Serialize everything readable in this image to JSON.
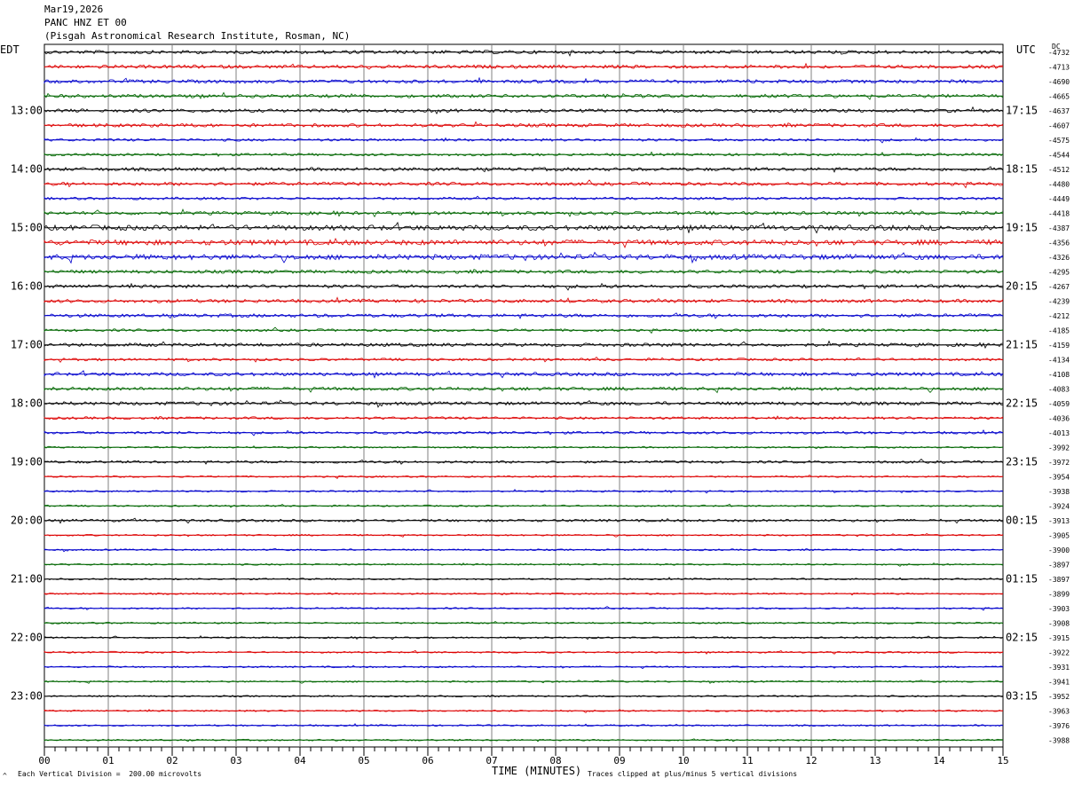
{
  "header": {
    "date": "Mar19,2026",
    "station": "PANC HNZ ET 00",
    "location": "(Pisgah Astronomical Research Institute, Rosman, NC)"
  },
  "labels": {
    "left_zone": "EDT",
    "right_zone": "UTC",
    "dc": "DC"
  },
  "footer": {
    "xlabel": "TIME (MINUTES)",
    "division_note": "Each Vertical Division =  200.00 microvolts",
    "clip_note": "Traces clipped at plus/minus 5 vertical divisions",
    "corner_mark": "^"
  },
  "colors": {
    "cycle": [
      "#000000",
      "#dd0000",
      "#0000cc",
      "#006600"
    ],
    "grid": "#808080"
  },
  "chart_data": {
    "type": "line",
    "title": "PANC HNZ ET 00",
    "xlabel": "TIME (MINUTES)",
    "xlim": [
      0,
      15
    ],
    "x_ticks": [
      "00",
      "01",
      "02",
      "03",
      "04",
      "05",
      "06",
      "07",
      "08",
      "09",
      "10",
      "11",
      "12",
      "13",
      "14",
      "15"
    ],
    "trace_count": 48,
    "trace_minutes": 15,
    "left_time_labels": [
      "13:00",
      "14:00",
      "15:00",
      "16:00",
      "17:00",
      "18:00",
      "19:00",
      "20:00",
      "21:00",
      "22:00",
      "23:00"
    ],
    "right_time_labels": [
      "17:15",
      "18:15",
      "19:15",
      "20:15",
      "21:15",
      "22:15",
      "23:15",
      "00:15",
      "01:15",
      "02:15",
      "03:15"
    ],
    "hour_label_first_trace": 4,
    "hour_label_every": 4,
    "dc_offsets": [
      -4732,
      -4713,
      -4690,
      -4665,
      -4637,
      -4607,
      -4575,
      -4544,
      -4512,
      -4480,
      -4449,
      -4418,
      -4387,
      -4356,
      -4326,
      -4295,
      -4267,
      -4239,
      -4212,
      -4185,
      -4159,
      -4134,
      -4108,
      -4083,
      -4059,
      -4036,
      -4013,
      -3992,
      -3972,
      -3954,
      -3938,
      -3924,
      -3913,
      -3905,
      -3900,
      -3897,
      -3897,
      -3899,
      -3903,
      -3908,
      -3915,
      -3922,
      -3931,
      -3941,
      -3952,
      -3963,
      -3976,
      -3988
    ],
    "trace_amplitude": [
      2,
      2,
      2,
      2,
      2,
      2,
      1.5,
      1.5,
      2,
      2,
      1.5,
      2,
      3,
      3,
      3,
      2,
      2,
      2,
      2,
      1.5,
      2,
      1.5,
      2,
      2,
      2,
      1.5,
      1.5,
      1,
      1.5,
      1,
      1,
      1,
      1.5,
      1,
      1,
      1,
      1,
      1,
      1,
      1,
      1,
      1,
      1,
      1,
      1,
      1,
      1,
      1
    ],
    "division_microvolts": 200.0,
    "clip_divisions": 5
  }
}
